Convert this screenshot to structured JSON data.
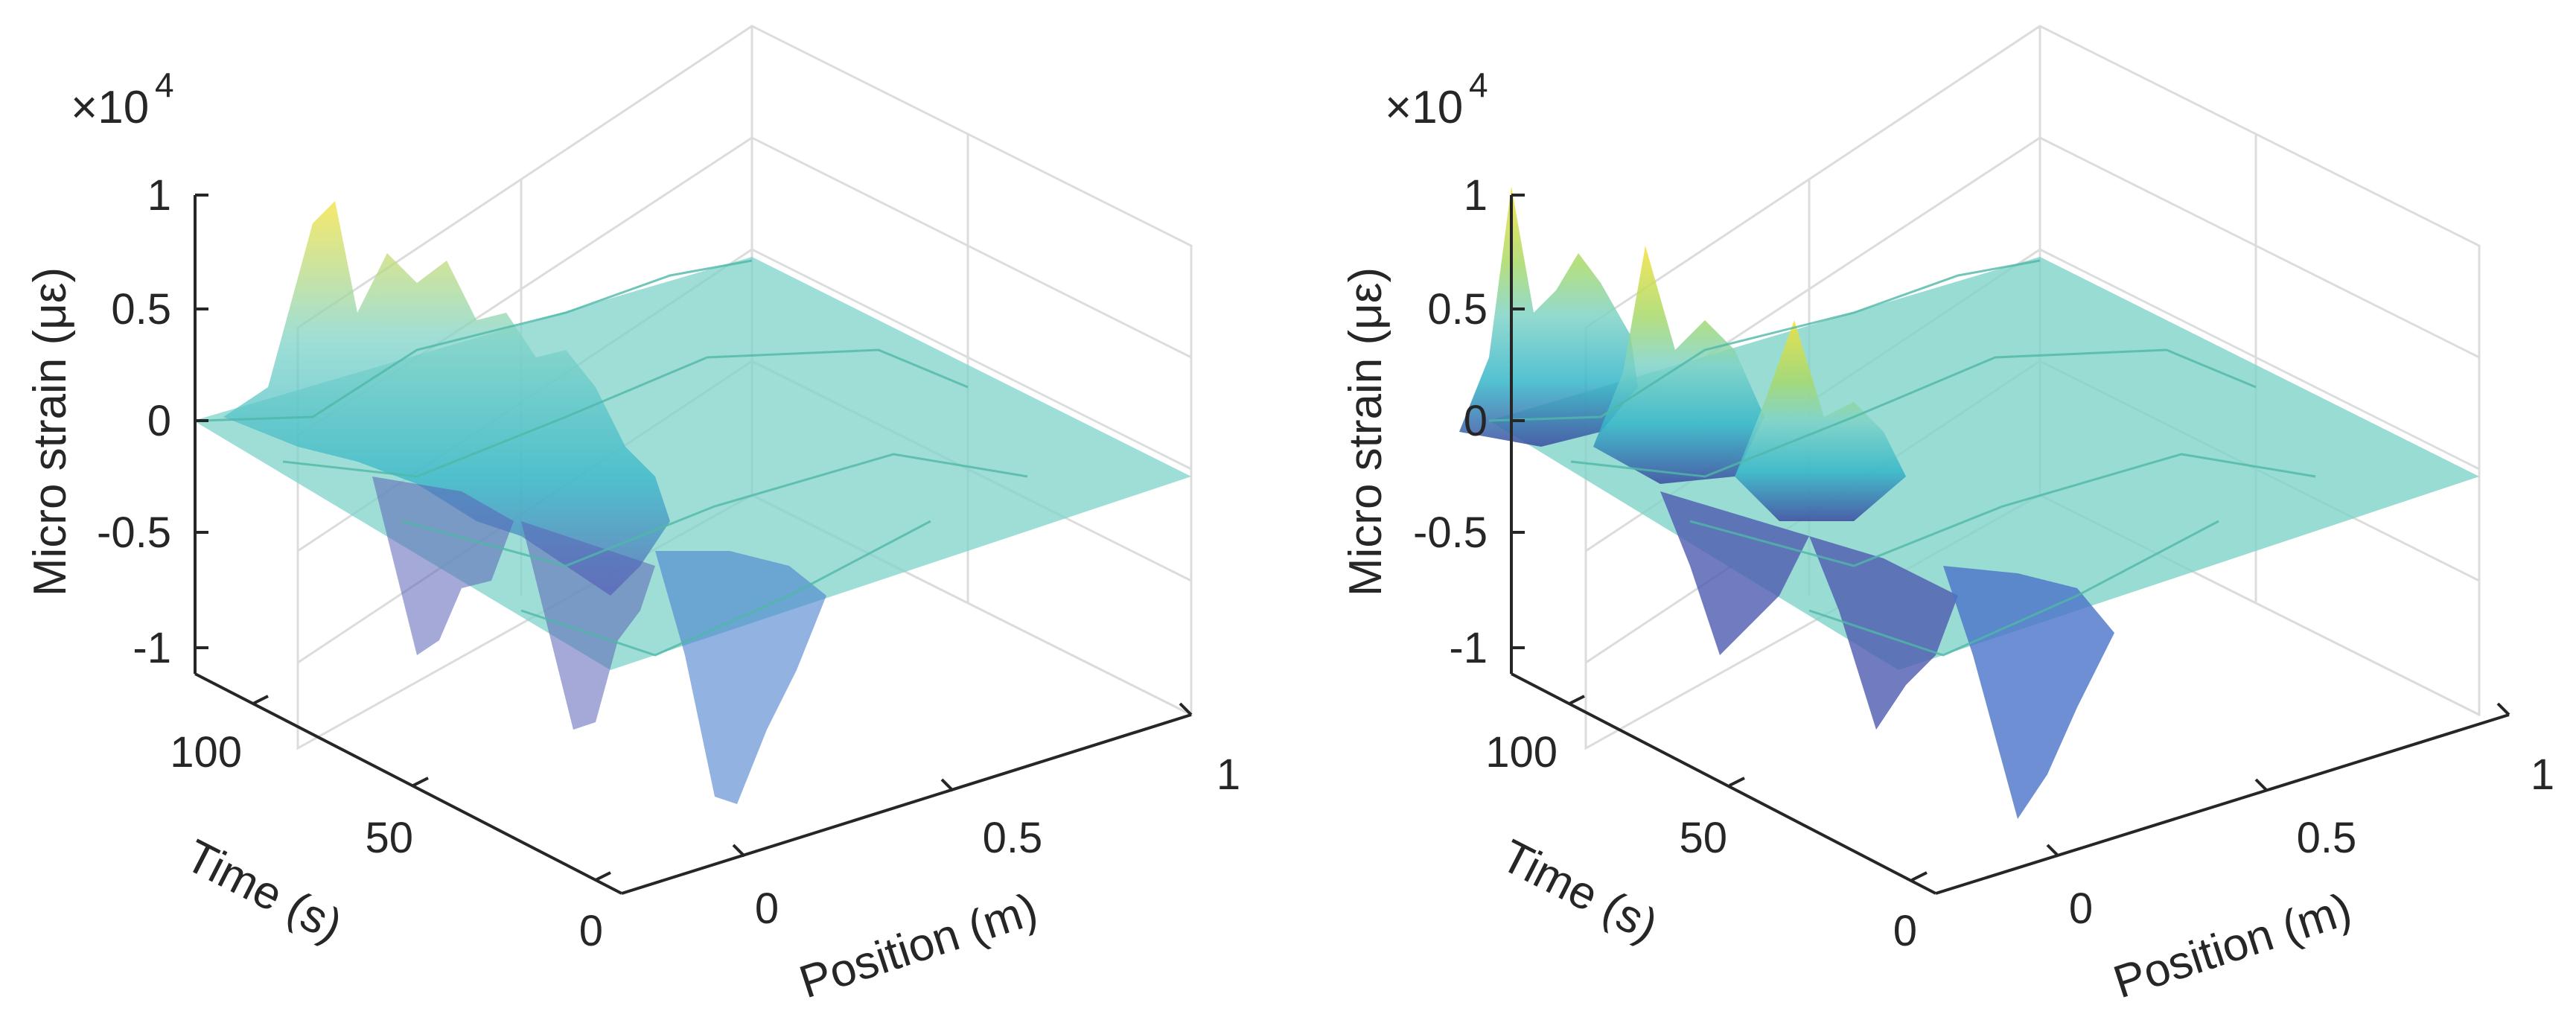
{
  "chart_data": [
    {
      "type": "surface3d",
      "panel": "left",
      "exponent_label": "×10",
      "exponent_power": "4",
      "zlabel": "Micro strain (με)",
      "xlabel": "Position (m)",
      "ylabel": "Time (s)",
      "zticks": [
        "1",
        "0.5",
        "0",
        "-0.5",
        "-1"
      ],
      "zvalues": [
        1,
        0.5,
        0,
        -0.5,
        -1
      ],
      "xticks": [
        "0",
        "0.5",
        "1"
      ],
      "xvalues": [
        0,
        0.5,
        1
      ],
      "yticks": [
        "0",
        "50",
        "100"
      ],
      "yvalues": [
        0,
        50,
        100
      ],
      "zlim": [
        -1,
        1
      ],
      "xlim": [
        -0.1,
        1
      ],
      "ylim": [
        0,
        120
      ],
      "render_style": "mesh",
      "notes": "Noisy strain surface; three load passes visible as peaks up to ~0.9e4 and troughs down to ~-0.95e4"
    },
    {
      "type": "surface3d",
      "panel": "right",
      "exponent_label": "×10",
      "exponent_power": "4",
      "zlabel": "Micro strain (με)",
      "xlabel": "Position (m)",
      "ylabel": "Time (s)",
      "zticks": [
        "1",
        "0.5",
        "0",
        "-0.5",
        "-1"
      ],
      "zvalues": [
        1,
        0.5,
        0,
        -0.5,
        -1
      ],
      "xticks": [
        "0",
        "0.5",
        "1"
      ],
      "xvalues": [
        0,
        0.5,
        1
      ],
      "yticks": [
        "0",
        "50",
        "100"
      ],
      "yvalues": [
        0,
        50,
        100
      ],
      "zlim": [
        -1,
        1
      ],
      "xlim": [
        -0.1,
        1
      ],
      "ylim": [
        0,
        120
      ],
      "render_style": "smooth",
      "notes": "Smoothed strain surface; peaks up to ~1.0e4 and troughs down to ~-1.0e4"
    }
  ],
  "colors": {
    "flat": "#7fd3c8",
    "low": "#3b4aa0",
    "mid": "#35b6c9",
    "high": "#f3e13a",
    "axis": "#262626",
    "grid": "#dcdcdc"
  }
}
